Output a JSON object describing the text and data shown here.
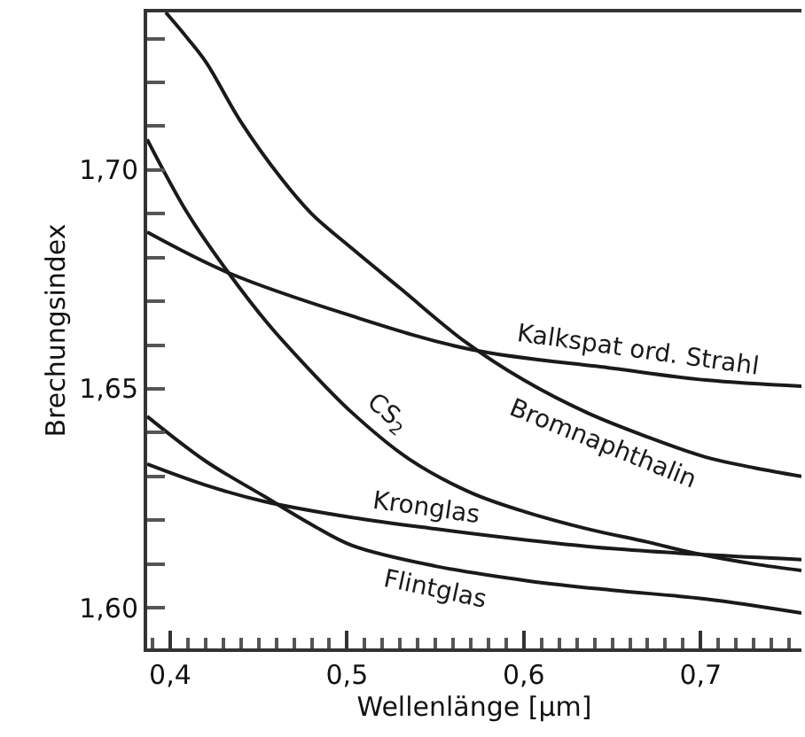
{
  "chart_data": {
    "type": "line",
    "xlabel": "Wellenlänge [µm]",
    "ylabel": "Brechungsindex",
    "xlim": [
      0.387,
      0.757
    ],
    "ylim": [
      1.5907,
      1.736
    ],
    "xticks": [
      {
        "value": 0.39,
        "label": null
      },
      {
        "value": 0.4,
        "label": "0,4"
      },
      {
        "value": 0.41,
        "label": null
      },
      {
        "value": 0.42,
        "label": null
      },
      {
        "value": 0.43,
        "label": null
      },
      {
        "value": 0.44,
        "label": null
      },
      {
        "value": 0.45,
        "label": null
      },
      {
        "value": 0.46,
        "label": null
      },
      {
        "value": 0.47,
        "label": null
      },
      {
        "value": 0.48,
        "label": null
      },
      {
        "value": 0.49,
        "label": null
      },
      {
        "value": 0.5,
        "label": "0,5"
      },
      {
        "value": 0.51,
        "label": null
      },
      {
        "value": 0.52,
        "label": null
      },
      {
        "value": 0.53,
        "label": null
      },
      {
        "value": 0.54,
        "label": null
      },
      {
        "value": 0.55,
        "label": null
      },
      {
        "value": 0.56,
        "label": null
      },
      {
        "value": 0.57,
        "label": null
      },
      {
        "value": 0.58,
        "label": null
      },
      {
        "value": 0.59,
        "label": null
      },
      {
        "value": 0.6,
        "label": "0,6"
      },
      {
        "value": 0.61,
        "label": null
      },
      {
        "value": 0.62,
        "label": null
      },
      {
        "value": 0.63,
        "label": null
      },
      {
        "value": 0.64,
        "label": null
      },
      {
        "value": 0.65,
        "label": null
      },
      {
        "value": 0.66,
        "label": null
      },
      {
        "value": 0.67,
        "label": null
      },
      {
        "value": 0.68,
        "label": null
      },
      {
        "value": 0.69,
        "label": null
      },
      {
        "value": 0.7,
        "label": "0,7"
      },
      {
        "value": 0.71,
        "label": null
      },
      {
        "value": 0.72,
        "label": null
      },
      {
        "value": 0.73,
        "label": null
      },
      {
        "value": 0.74,
        "label": null
      },
      {
        "value": 0.75,
        "label": null
      }
    ],
    "yticks": [
      {
        "value": 1.6,
        "label": "1,60"
      },
      {
        "value": 1.61,
        "label": null
      },
      {
        "value": 1.62,
        "label": null
      },
      {
        "value": 1.63,
        "label": null
      },
      {
        "value": 1.64,
        "label": null
      },
      {
        "value": 1.65,
        "label": "1,65"
      },
      {
        "value": 1.66,
        "label": null
      },
      {
        "value": 1.67,
        "label": null
      },
      {
        "value": 1.68,
        "label": null
      },
      {
        "value": 1.69,
        "label": null
      },
      {
        "value": 1.7,
        "label": "1,70"
      },
      {
        "value": 1.71,
        "label": null
      },
      {
        "value": 1.72,
        "label": null
      },
      {
        "value": 1.73,
        "label": null
      }
    ],
    "legend": false,
    "marker": "none",
    "line_style": "solid",
    "series": [
      {
        "name": "Kalkspat ord. Strahl",
        "color": "#1a1a1a",
        "x": [
          0.387,
          0.433,
          0.5,
          0.57,
          0.65,
          0.703,
          0.757
        ],
        "values": [
          1.6858,
          1.6765,
          1.667,
          1.659,
          1.6547,
          1.652,
          1.6506
        ]
      },
      {
        "name": "Bromnaphthalin",
        "color": "#1a1a1a",
        "x": [
          0.3975,
          0.41,
          0.4205,
          0.44,
          0.463,
          0.48,
          0.503,
          0.53,
          0.566,
          0.6,
          0.636,
          0.67,
          0.703,
          0.73,
          0.757
        ],
        "values": [
          1.736,
          1.73,
          1.7245,
          1.711,
          1.698,
          1.69,
          1.682,
          1.673,
          1.661,
          1.652,
          1.6445,
          1.639,
          1.6344,
          1.632,
          1.63
        ]
      },
      {
        "name": "CS$_{2}$",
        "color": "#1a1a1a",
        "x": [
          0.387,
          0.41,
          0.433,
          0.455,
          0.475,
          0.503,
          0.535,
          0.57,
          0.6,
          0.636,
          0.67,
          0.696,
          0.73,
          0.757
        ],
        "values": [
          1.707,
          1.69,
          1.6765,
          1.665,
          1.656,
          1.6445,
          1.634,
          1.6263,
          1.622,
          1.618,
          1.615,
          1.6125,
          1.61,
          1.6085
        ]
      },
      {
        "name": "Kronglas",
        "color": "#1a1a1a",
        "x": [
          0.387,
          0.42,
          0.453,
          0.503,
          0.55,
          0.603,
          0.65,
          0.703,
          0.757
        ],
        "values": [
          1.6328,
          1.628,
          1.6243,
          1.6206,
          1.618,
          1.6154,
          1.6135,
          1.6121,
          1.611
        ]
      },
      {
        "name": "Flintglas",
        "color": "#1a1a1a",
        "x": [
          0.387,
          0.42,
          0.453,
          0.48,
          0.503,
          0.55,
          0.603,
          0.65,
          0.703,
          0.757
        ],
        "values": [
          1.6437,
          1.6335,
          1.6255,
          1.619,
          1.6142,
          1.6095,
          1.6061,
          1.604,
          1.602,
          1.5988
        ]
      }
    ]
  }
}
